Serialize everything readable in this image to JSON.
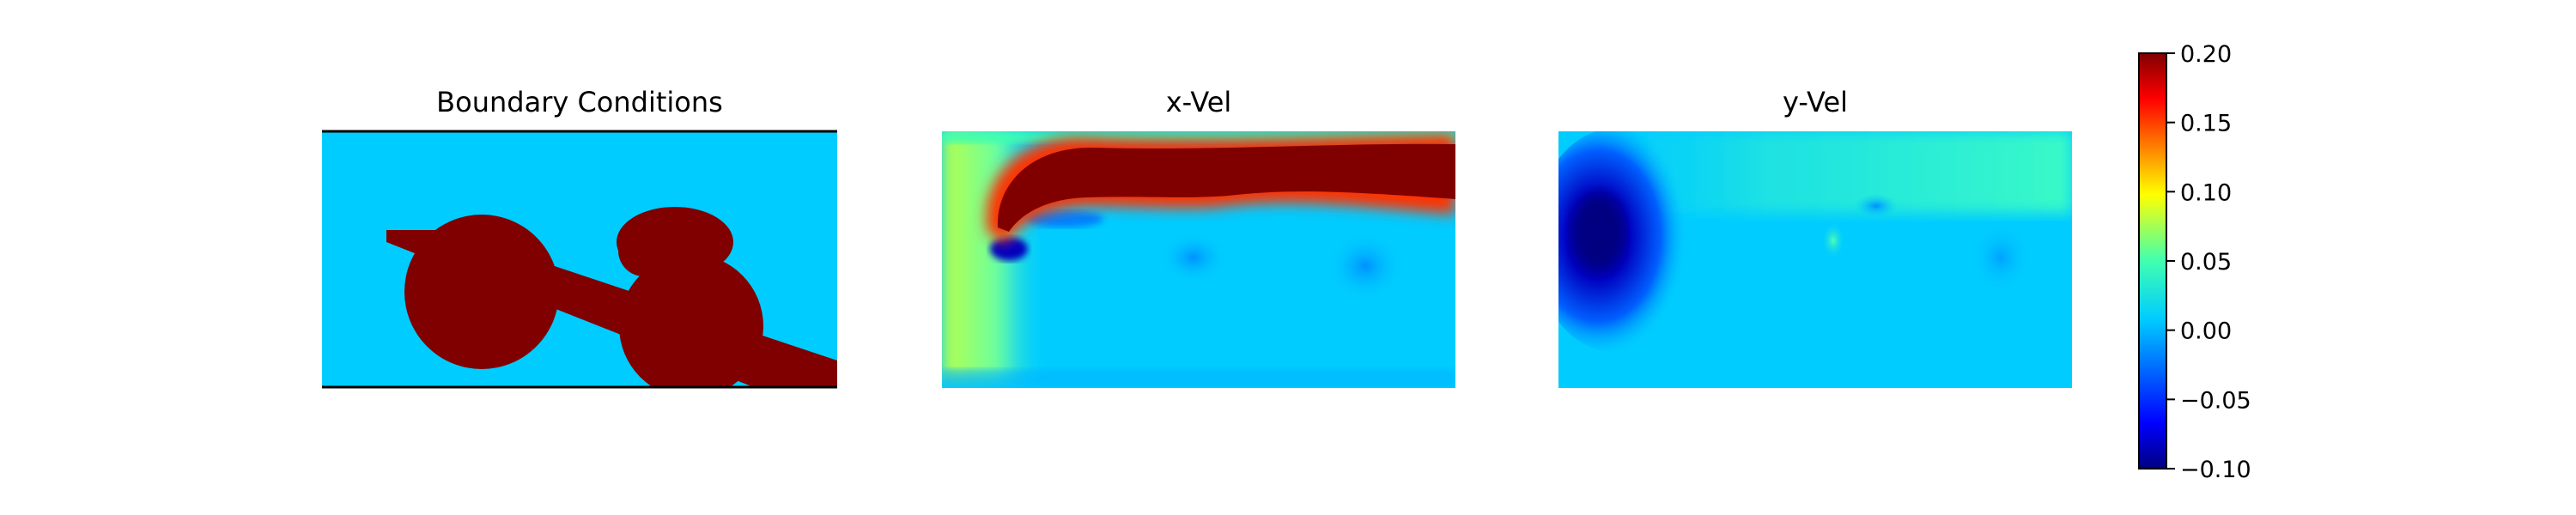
{
  "chart_data": {
    "type": "heatmap",
    "colormap": "jet",
    "panels": [
      {
        "title": "Boundary Conditions",
        "fields": "binary mask: fluid (value 0.0) vs solid obstacles (value 0.2)",
        "solid_value": 0.2,
        "fluid_value": 0.0,
        "walls": "solid black lines on top and bottom edges"
      },
      {
        "title": "x-Vel",
        "description": "horizontal velocity field; strong positive jet (>=0.2) across upper region, near-zero below obstacles",
        "max_value": 0.2,
        "min_value": -0.1
      },
      {
        "title": "y-Vel",
        "description": "vertical velocity field; strong negative region (-0.1) left of first obstacle, weak positive band along top",
        "max_value": 0.05,
        "min_value": -0.1
      }
    ],
    "colorbar": {
      "range": [
        -0.1,
        0.2
      ],
      "ticks": [
        "0.20",
        "0.15",
        "0.10",
        "0.05",
        "0.00",
        "−0.05",
        "−0.10"
      ]
    }
  },
  "colors": {
    "fluid": "#00ccff",
    "solid": "#800000"
  }
}
